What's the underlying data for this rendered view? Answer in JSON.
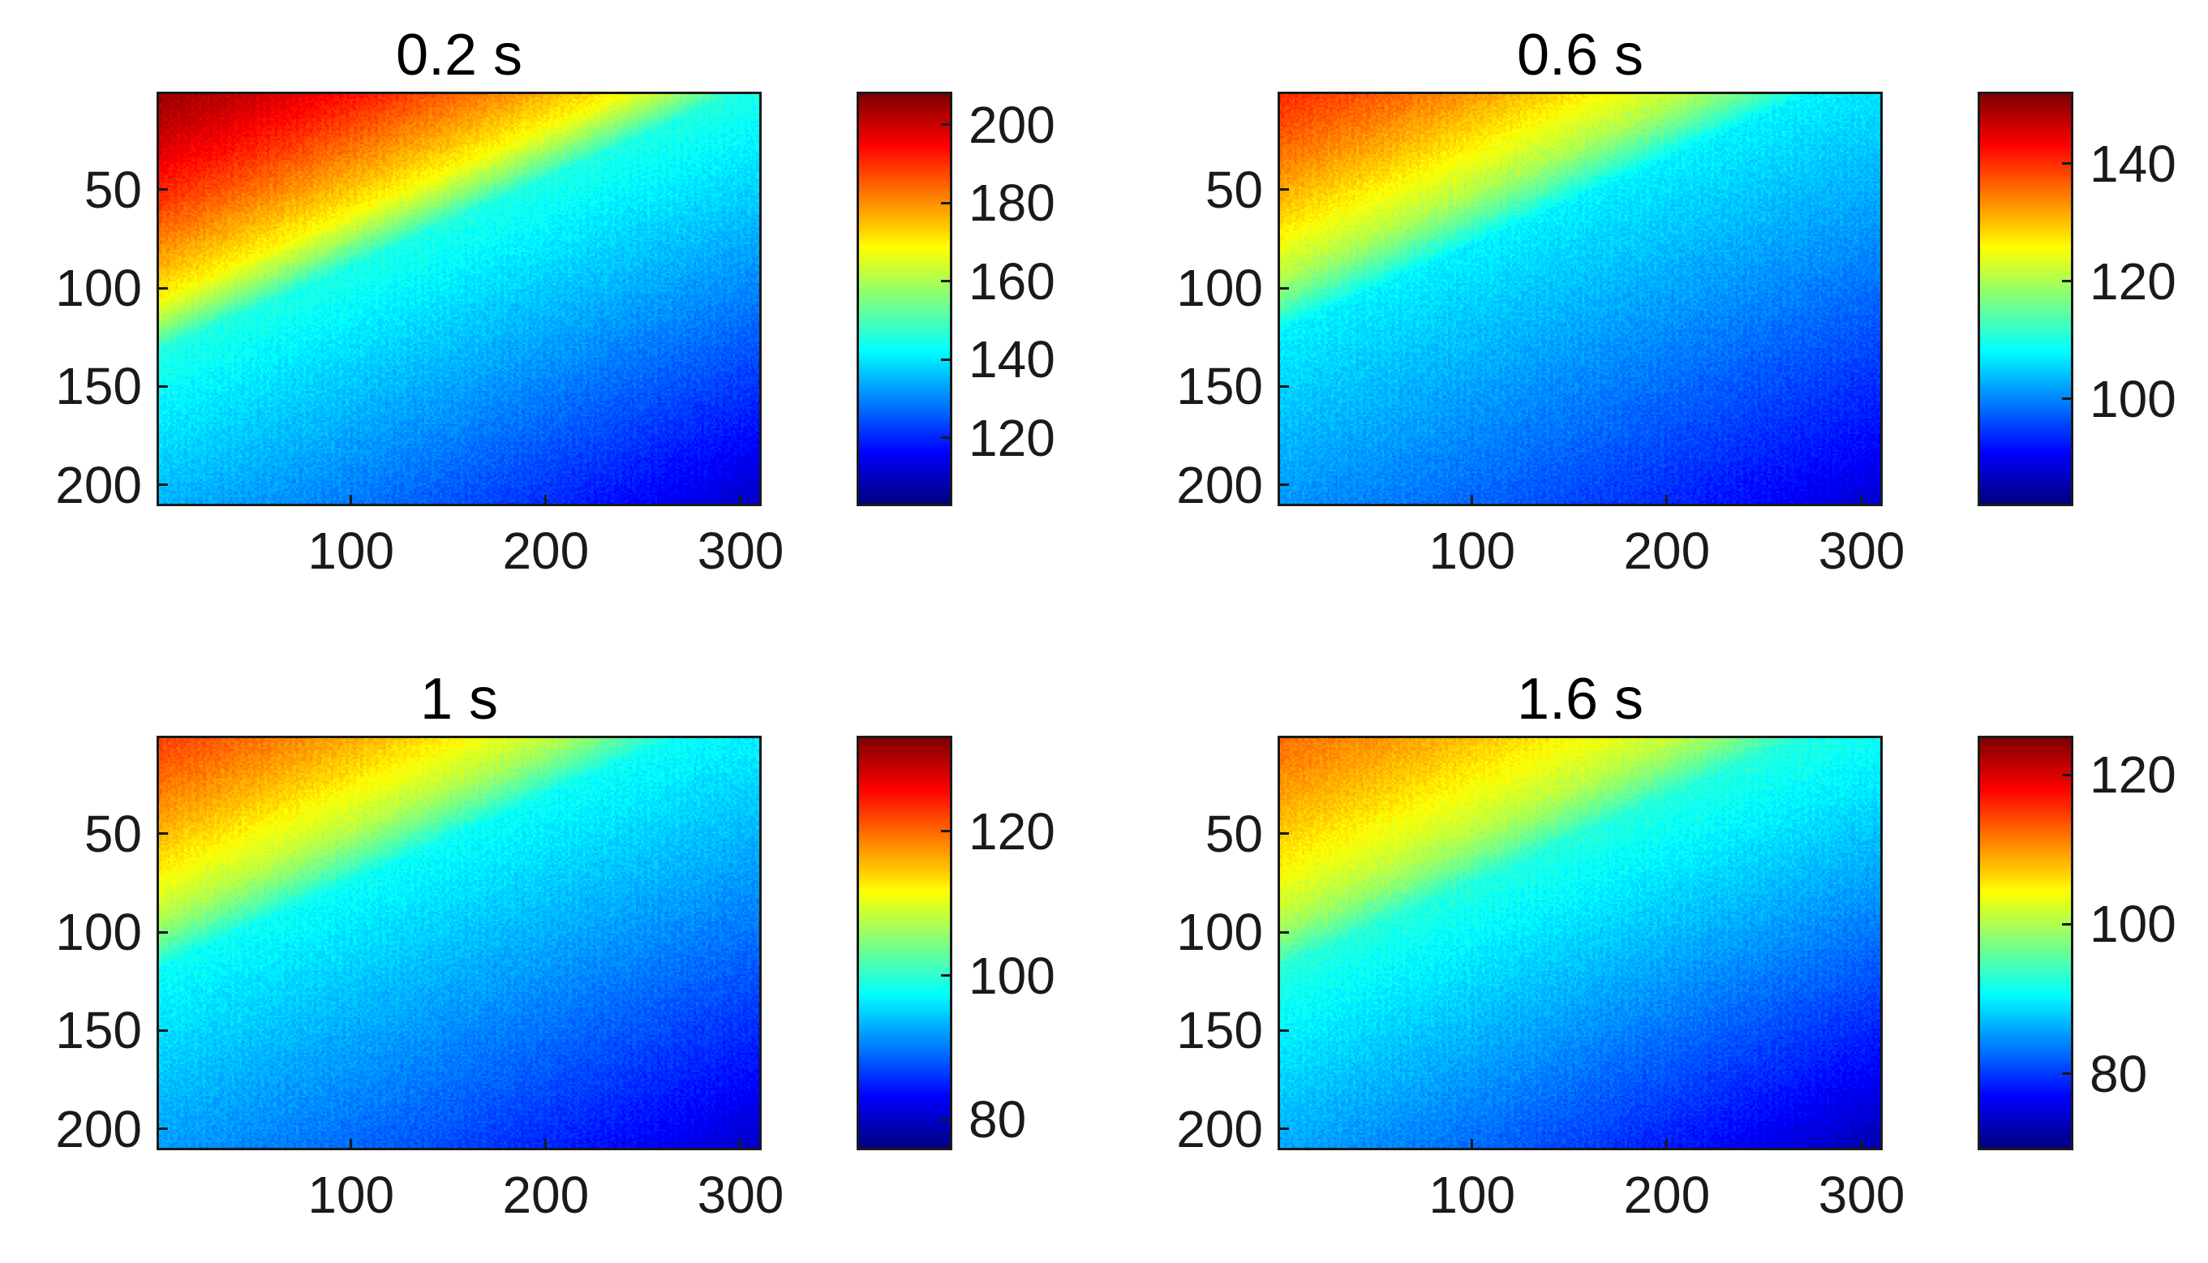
{
  "chart_data": [
    {
      "type": "heatmap",
      "title": "0.2 s",
      "x_ticks": [
        100,
        200,
        300
      ],
      "y_ticks": [
        50,
        100,
        150,
        200
      ],
      "xlim": [
        1,
        310
      ],
      "ylim": [
        1,
        210
      ],
      "y_direction": "reversed",
      "colormap": "jet",
      "colorbar": {
        "range": [
          103,
          208
        ],
        "ticks": [
          120,
          140,
          160,
          180,
          200
        ]
      },
      "field": {
        "top_left": 205,
        "mid": 150,
        "bottom_right": 118,
        "front_position": 0.3
      }
    },
    {
      "type": "heatmap",
      "title": "0.6 s",
      "x_ticks": [
        100,
        200,
        300
      ],
      "y_ticks": [
        50,
        100,
        150,
        200
      ],
      "xlim": [
        1,
        310
      ],
      "ylim": [
        1,
        210
      ],
      "y_direction": "reversed",
      "colormap": "jet",
      "colorbar": {
        "range": [
          82,
          152
        ],
        "ticks": [
          100,
          120,
          140
        ]
      },
      "field": {
        "top_left": 140,
        "mid": 110,
        "bottom_right": 92,
        "front_position": 0.27
      }
    },
    {
      "type": "heatmap",
      "title": "1 s",
      "x_ticks": [
        100,
        200,
        300
      ],
      "y_ticks": [
        50,
        100,
        150,
        200
      ],
      "xlim": [
        1,
        310
      ],
      "ylim": [
        1,
        210
      ],
      "y_direction": "reversed",
      "colormap": "jet",
      "colorbar": {
        "range": [
          76,
          133
        ],
        "ticks": [
          80,
          100,
          120
        ]
      },
      "field": {
        "top_left": 122,
        "mid": 100,
        "bottom_right": 84,
        "front_position": 0.26
      }
    },
    {
      "type": "heatmap",
      "title": "1.6 s",
      "x_ticks": [
        100,
        200,
        300
      ],
      "y_ticks": [
        50,
        100,
        150,
        200
      ],
      "xlim": [
        1,
        310
      ],
      "ylim": [
        1,
        210
      ],
      "y_direction": "reversed",
      "colormap": "jet",
      "colorbar": {
        "range": [
          70,
          125
        ],
        "ticks": [
          80,
          100,
          120
        ]
      },
      "field": {
        "top_left": 112,
        "mid": 95,
        "bottom_right": 77,
        "front_position": 0.26
      }
    }
  ]
}
